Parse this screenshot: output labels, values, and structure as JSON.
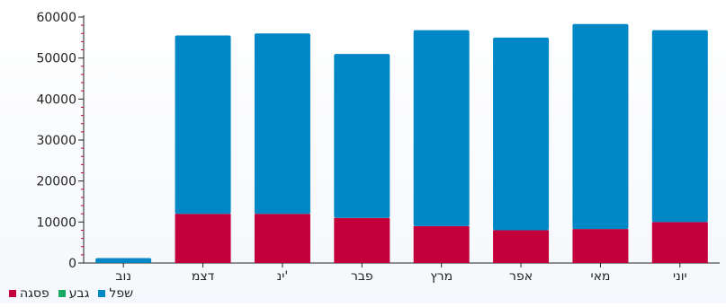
{
  "chart_data": {
    "type": "bar",
    "stacked": true,
    "categories": [
      "נוב",
      "דצמ",
      "ינ'",
      "פבר",
      "מרץ",
      "אפר",
      "מאי",
      "יוני"
    ],
    "series": [
      {
        "name": "פסגה",
        "color": "#c4003a",
        "values": [
          0,
          12000,
          12000,
          11000,
          9000,
          8000,
          8300,
          10000
        ]
      },
      {
        "name": "גבע",
        "color": "#1aa865",
        "values": [
          0,
          0,
          0,
          0,
          0,
          0,
          0,
          0
        ]
      },
      {
        "name": "שפל",
        "color": "#0088c6",
        "values": [
          1200,
          43500,
          44000,
          40000,
          47800,
          47000,
          50000,
          46800
        ]
      }
    ],
    "yticks": [
      0,
      10000,
      20000,
      30000,
      40000,
      50000,
      60000
    ],
    "ylim": [
      0,
      60000
    ],
    "grid": false,
    "legend": "bottom-left"
  }
}
